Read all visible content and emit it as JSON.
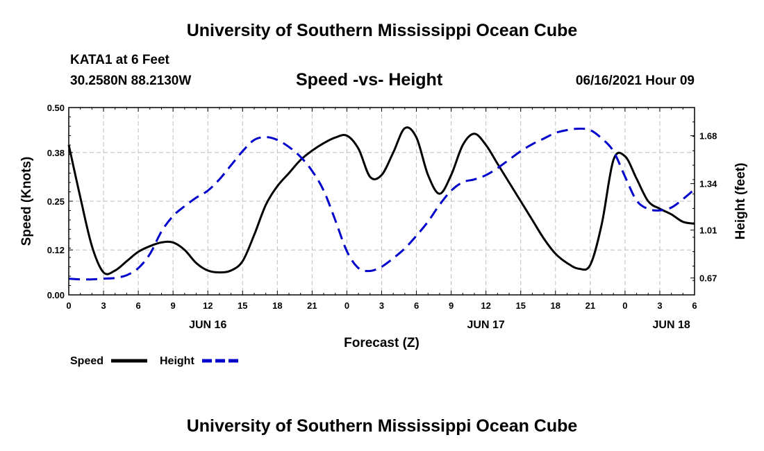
{
  "header": {
    "top_title": "University of Southern Mississippi Ocean Cube",
    "station": "KATA1 at 6 Feet",
    "coords": "30.2580N  88.2130W",
    "chart_title": "Speed -vs- Height",
    "run_time": "06/16/2021 Hour 09"
  },
  "footer": {
    "bottom_title": "University of Southern Mississippi Ocean Cube"
  },
  "chart_data": {
    "type": "line",
    "title": "Speed -vs- Height",
    "xlabel": "Forecast (Z)",
    "ylabel": "Speed (Knots)",
    "y2label": "Height (feet)",
    "x_range_hours": [
      0,
      54
    ],
    "ylim": [
      0,
      0.5
    ],
    "y2lim": [
      0.55,
      1.88
    ],
    "x_ticks_hours": [
      0,
      3,
      6,
      9,
      12,
      15,
      18,
      21,
      24,
      27,
      30,
      33,
      36,
      39,
      42,
      45,
      48,
      51,
      54
    ],
    "x_tick_labels": [
      "0",
      "3",
      "6",
      "9",
      "12",
      "15",
      "18",
      "21",
      "0",
      "3",
      "6",
      "9",
      "12",
      "15",
      "18",
      "21",
      "0",
      "3",
      "6"
    ],
    "day_labels": [
      {
        "hour": 12,
        "label": "JUN 16"
      },
      {
        "hour": 36,
        "label": "JUN 17"
      },
      {
        "hour": 52,
        "label": "JUN 18"
      }
    ],
    "y_ticks": [
      0.0,
      0.12,
      0.25,
      0.38,
      0.5
    ],
    "y_tick_labels": [
      "0.00",
      "0.12",
      "0.25",
      "0.38",
      "0.50"
    ],
    "y2_ticks": [
      0.67,
      1.01,
      1.34,
      1.68
    ],
    "y2_tick_labels": [
      "0.67",
      "1.01",
      "1.34",
      "1.68"
    ],
    "grid": true,
    "legend": [
      "Speed",
      "Height"
    ],
    "series": [
      {
        "name": "Speed",
        "axis": "left",
        "color": "#000000",
        "style": "solid",
        "x": [
          0,
          1,
          2,
          3,
          4,
          5,
          6,
          7,
          8,
          9,
          10,
          11,
          12,
          13,
          14,
          15,
          16,
          17,
          18,
          19,
          20,
          21,
          22,
          23,
          24,
          25,
          26,
          27,
          28,
          29,
          30,
          31,
          32,
          33,
          34,
          35,
          36,
          37,
          38,
          39,
          40,
          41,
          42,
          43,
          44,
          45,
          46,
          47,
          48,
          49,
          50,
          51,
          52,
          53,
          54
        ],
        "values": [
          0.4,
          0.26,
          0.13,
          0.06,
          0.065,
          0.09,
          0.115,
          0.13,
          0.14,
          0.14,
          0.12,
          0.085,
          0.065,
          0.06,
          0.065,
          0.09,
          0.16,
          0.24,
          0.29,
          0.325,
          0.36,
          0.385,
          0.405,
          0.42,
          0.425,
          0.39,
          0.315,
          0.32,
          0.38,
          0.445,
          0.42,
          0.32,
          0.27,
          0.32,
          0.4,
          0.43,
          0.4,
          0.35,
          0.3,
          0.25,
          0.2,
          0.15,
          0.11,
          0.085,
          0.07,
          0.08,
          0.19,
          0.36,
          0.37,
          0.31,
          0.25,
          0.23,
          0.215,
          0.195,
          0.19
        ]
      },
      {
        "name": "Height",
        "axis": "right",
        "color": "#0000cc",
        "style": "dashed",
        "x": [
          0,
          1,
          2,
          3,
          4,
          5,
          6,
          7,
          8,
          9,
          10,
          11,
          12,
          13,
          14,
          15,
          16,
          17,
          18,
          19,
          20,
          21,
          22,
          23,
          24,
          25,
          26,
          27,
          28,
          29,
          30,
          31,
          32,
          33,
          34,
          35,
          36,
          37,
          38,
          39,
          40,
          41,
          42,
          43,
          44,
          45,
          46,
          47,
          48,
          49,
          50,
          51,
          52,
          53,
          54
        ],
        "values": [
          0.665,
          0.66,
          0.66,
          0.665,
          0.67,
          0.69,
          0.74,
          0.84,
          1.0,
          1.11,
          1.18,
          1.24,
          1.29,
          1.37,
          1.47,
          1.57,
          1.65,
          1.67,
          1.65,
          1.6,
          1.53,
          1.43,
          1.29,
          1.08,
          0.86,
          0.74,
          0.72,
          0.75,
          0.81,
          0.88,
          0.97,
          1.07,
          1.19,
          1.29,
          1.35,
          1.37,
          1.4,
          1.45,
          1.51,
          1.57,
          1.62,
          1.66,
          1.7,
          1.72,
          1.73,
          1.72,
          1.66,
          1.57,
          1.39,
          1.22,
          1.16,
          1.15,
          1.17,
          1.23,
          1.3
        ]
      }
    ]
  }
}
